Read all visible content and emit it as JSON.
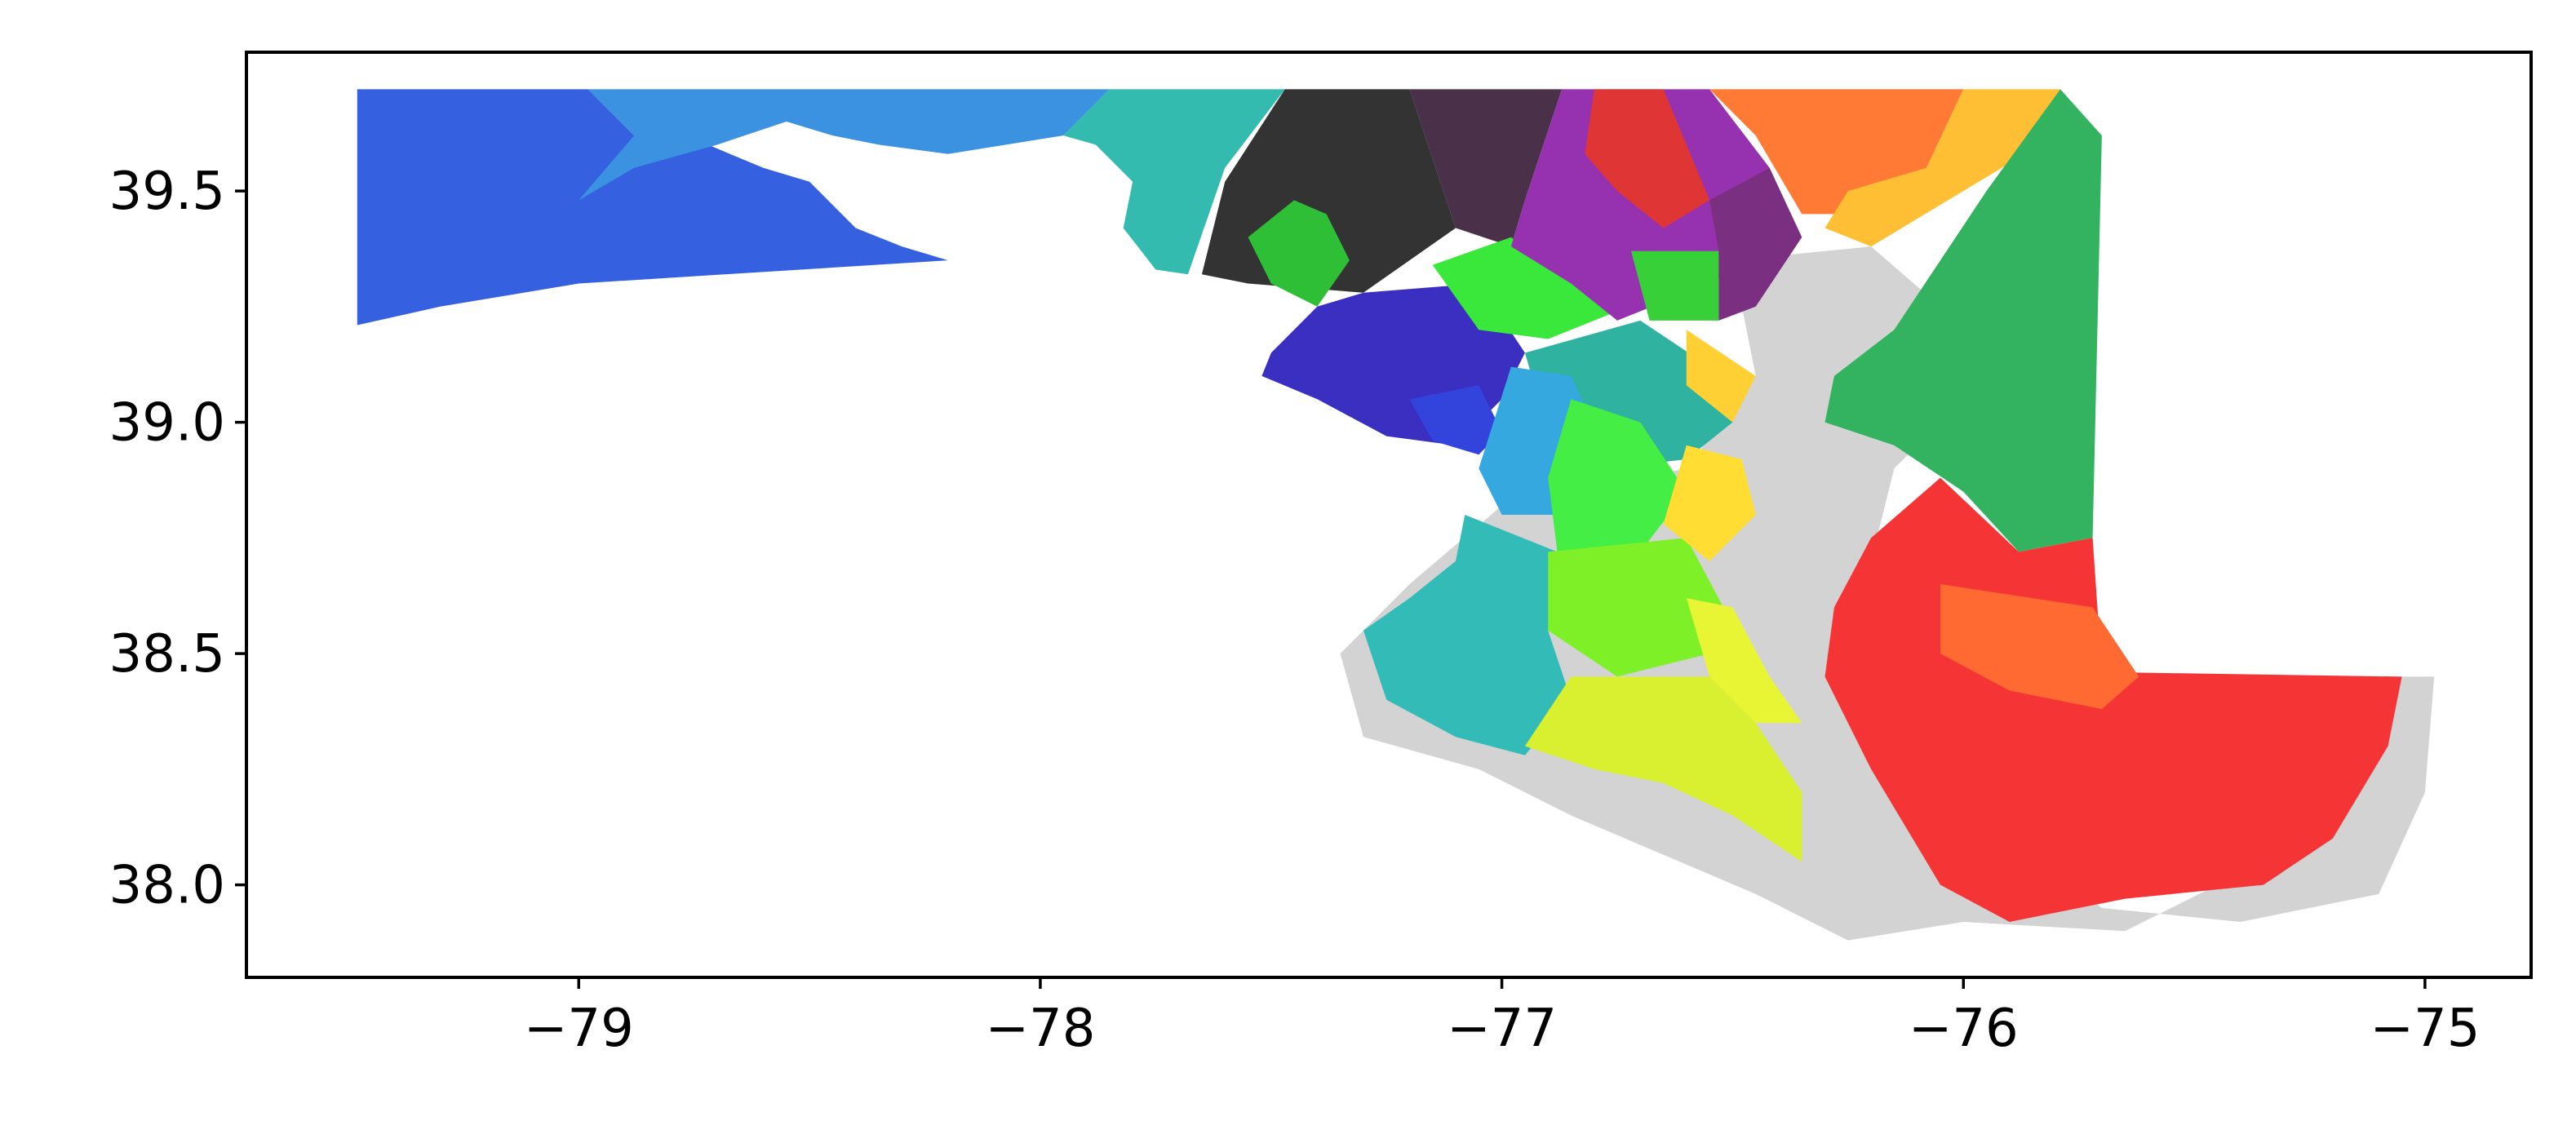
{
  "chart_data": {
    "type": "map",
    "title": "",
    "xlabel": "",
    "ylabel": "",
    "xlim": [
      -79.72,
      -74.77
    ],
    "ylim": [
      37.8,
      39.8
    ],
    "x_ticks": [
      {
        "value": -79,
        "label": "−79"
      },
      {
        "value": -78,
        "label": "−78"
      },
      {
        "value": -77,
        "label": "−77"
      },
      {
        "value": -76,
        "label": "−76"
      },
      {
        "value": -75,
        "label": "−75"
      }
    ],
    "y_ticks": [
      {
        "value": 38.0,
        "label": "38.0"
      },
      {
        "value": 38.5,
        "label": "38.5"
      },
      {
        "value": 39.0,
        "label": "39.0"
      },
      {
        "value": 39.5,
        "label": "39.5"
      }
    ],
    "grid": false,
    "legend": "none",
    "water_color": "#d3d3d3",
    "regions": [
      {
        "id": "west-garrett",
        "color": "#3560e0",
        "coords": [
          [
            -79.48,
            39.72
          ],
          [
            -78.98,
            39.72
          ],
          [
            -78.88,
            39.62
          ],
          [
            -78.72,
            39.6
          ],
          [
            -78.6,
            39.55
          ],
          [
            -78.5,
            39.52
          ],
          [
            -78.4,
            39.42
          ],
          [
            -78.3,
            39.38
          ],
          [
            -78.2,
            39.35
          ],
          [
            -79.0,
            39.3
          ],
          [
            -79.3,
            39.25
          ],
          [
            -79.48,
            39.21
          ]
        ]
      },
      {
        "id": "west-allegany",
        "color": "#3a92e0",
        "coords": [
          [
            -78.98,
            39.72
          ],
          [
            -77.85,
            39.72
          ],
          [
            -77.95,
            39.62
          ],
          [
            -78.2,
            39.58
          ],
          [
            -78.35,
            39.6
          ],
          [
            -78.45,
            39.62
          ],
          [
            -78.55,
            39.65
          ],
          [
            -78.7,
            39.6
          ],
          [
            -78.88,
            39.55
          ],
          [
            -79.0,
            39.48
          ],
          [
            -78.88,
            39.62
          ]
        ]
      },
      {
        "id": "washington",
        "color": "#33bbb0",
        "coords": [
          [
            -77.85,
            39.72
          ],
          [
            -77.47,
            39.72
          ],
          [
            -77.6,
            39.55
          ],
          [
            -77.68,
            39.32
          ],
          [
            -77.75,
            39.33
          ],
          [
            -77.82,
            39.42
          ],
          [
            -77.8,
            39.52
          ],
          [
            -77.88,
            39.6
          ],
          [
            -77.95,
            39.62
          ]
        ]
      },
      {
        "id": "frederick-north",
        "color": "#333333",
        "coords": [
          [
            -77.47,
            39.72
          ],
          [
            -77.2,
            39.72
          ],
          [
            -77.1,
            39.42
          ],
          [
            -77.3,
            39.28
          ],
          [
            -77.55,
            39.3
          ],
          [
            -77.65,
            39.32
          ],
          [
            -77.6,
            39.52
          ]
        ]
      },
      {
        "id": "frederick-city",
        "color": "#2fbf36",
        "coords": [
          [
            -77.45,
            39.48
          ],
          [
            -77.38,
            39.45
          ],
          [
            -77.33,
            39.35
          ],
          [
            -77.4,
            39.25
          ],
          [
            -77.5,
            39.3
          ],
          [
            -77.55,
            39.4
          ]
        ]
      },
      {
        "id": "carroll",
        "color": "#4a3048",
        "coords": [
          [
            -77.2,
            39.72
          ],
          [
            -76.87,
            39.72
          ],
          [
            -76.95,
            39.48
          ],
          [
            -76.98,
            39.38
          ],
          [
            -77.1,
            39.42
          ]
        ]
      },
      {
        "id": "montgomery-north",
        "color": "#3a2fc0",
        "coords": [
          [
            -77.3,
            39.28
          ],
          [
            -77.05,
            39.3
          ],
          [
            -76.95,
            39.15
          ],
          [
            -77.0,
            39.05
          ],
          [
            -77.1,
            38.95
          ],
          [
            -77.25,
            38.97
          ],
          [
            -77.4,
            39.05
          ],
          [
            -77.52,
            39.1
          ],
          [
            -77.5,
            39.15
          ],
          [
            -77.4,
            39.25
          ]
        ]
      },
      {
        "id": "montgomery-south",
        "color": "#3344dd",
        "coords": [
          [
            -77.2,
            39.05
          ],
          [
            -77.05,
            39.08
          ],
          [
            -77.0,
            38.98
          ],
          [
            -77.05,
            38.93
          ],
          [
            -77.15,
            38.96
          ]
        ]
      },
      {
        "id": "howard",
        "color": "#39e83a",
        "coords": [
          [
            -77.15,
            39.34
          ],
          [
            -76.98,
            39.4
          ],
          [
            -76.85,
            39.3
          ],
          [
            -76.75,
            39.24
          ],
          [
            -76.9,
            39.18
          ],
          [
            -77.05,
            39.2
          ]
        ]
      },
      {
        "id": "balt-county-west",
        "color": "#9632b0",
        "coords": [
          [
            -76.87,
            39.72
          ],
          [
            -76.55,
            39.72
          ],
          [
            -76.42,
            39.55
          ],
          [
            -76.4,
            39.38
          ],
          [
            -76.55,
            39.3
          ],
          [
            -76.75,
            39.22
          ],
          [
            -76.85,
            39.3
          ],
          [
            -76.98,
            39.38
          ],
          [
            -76.95,
            39.48
          ]
        ]
      },
      {
        "id": "balt-north",
        "color": "#e03535",
        "coords": [
          [
            -76.8,
            39.72
          ],
          [
            -76.65,
            39.72
          ],
          [
            -76.55,
            39.48
          ],
          [
            -76.65,
            39.42
          ],
          [
            -76.75,
            39.5
          ],
          [
            -76.82,
            39.58
          ]
        ]
      },
      {
        "id": "balt-city",
        "color": "#37d039",
        "coords": [
          [
            -76.72,
            39.37
          ],
          [
            -76.53,
            39.37
          ],
          [
            -76.53,
            39.22
          ],
          [
            -76.68,
            39.22
          ]
        ]
      },
      {
        "id": "balt-east",
        "color": "#7a2f80",
        "coords": [
          [
            -76.55,
            39.48
          ],
          [
            -76.42,
            39.55
          ],
          [
            -76.35,
            39.4
          ],
          [
            -76.45,
            39.25
          ],
          [
            -76.53,
            39.22
          ],
          [
            -76.53,
            39.37
          ]
        ]
      },
      {
        "id": "harford",
        "color": "#ff7a35",
        "coords": [
          [
            -76.55,
            39.72
          ],
          [
            -76.0,
            39.72
          ],
          [
            -76.08,
            39.55
          ],
          [
            -76.2,
            39.45
          ],
          [
            -76.35,
            39.45
          ],
          [
            -76.45,
            39.62
          ]
        ]
      },
      {
        "id": "cecil-yellow",
        "color": "#ffbf35",
        "coords": [
          [
            -76.0,
            39.72
          ],
          [
            -75.79,
            39.72
          ],
          [
            -75.8,
            39.62
          ],
          [
            -76.0,
            39.5
          ],
          [
            -76.2,
            39.38
          ],
          [
            -76.3,
            39.42
          ],
          [
            -76.25,
            39.5
          ],
          [
            -76.08,
            39.55
          ]
        ]
      },
      {
        "id": "anne-arundel-north",
        "color": "#2fb3a0",
        "coords": [
          [
            -76.95,
            39.15
          ],
          [
            -76.7,
            39.22
          ],
          [
            -76.55,
            39.12
          ],
          [
            -76.5,
            39.0
          ],
          [
            -76.6,
            38.92
          ],
          [
            -76.78,
            38.9
          ],
          [
            -76.9,
            38.98
          ]
        ]
      },
      {
        "id": "anne-arundel-yellow",
        "color": "#ffd033",
        "coords": [
          [
            -76.6,
            39.2
          ],
          [
            -76.45,
            39.1
          ],
          [
            -76.5,
            39.0
          ],
          [
            -76.6,
            39.08
          ]
        ]
      },
      {
        "id": "prince-georges",
        "color": "#35a8e0",
        "coords": [
          [
            -76.98,
            39.12
          ],
          [
            -76.85,
            39.1
          ],
          [
            -76.78,
            38.95
          ],
          [
            -76.85,
            38.8
          ],
          [
            -77.0,
            38.8
          ],
          [
            -77.05,
            38.9
          ]
        ]
      },
      {
        "id": "pg-south",
        "color": "#44ee44",
        "coords": [
          [
            -76.85,
            39.05
          ],
          [
            -76.7,
            39.0
          ],
          [
            -76.6,
            38.85
          ],
          [
            -76.7,
            38.72
          ],
          [
            -76.88,
            38.72
          ],
          [
            -76.9,
            38.88
          ]
        ]
      },
      {
        "id": "charles",
        "color": "#33bbb8",
        "coords": [
          [
            -77.08,
            38.8
          ],
          [
            -76.88,
            38.72
          ],
          [
            -76.9,
            38.55
          ],
          [
            -76.85,
            38.4
          ],
          [
            -76.95,
            38.28
          ],
          [
            -77.1,
            38.32
          ],
          [
            -77.25,
            38.4
          ],
          [
            -77.3,
            38.55
          ],
          [
            -77.2,
            38.62
          ],
          [
            -77.1,
            38.7
          ]
        ]
      },
      {
        "id": "calvert-green",
        "color": "#7df028",
        "coords": [
          [
            -76.9,
            38.72
          ],
          [
            -76.6,
            38.75
          ],
          [
            -76.52,
            38.6
          ],
          [
            -76.55,
            38.5
          ],
          [
            -76.75,
            38.45
          ],
          [
            -76.9,
            38.55
          ]
        ]
      },
      {
        "id": "anne-arundel-south",
        "color": "#ffdd33",
        "coords": [
          [
            -76.6,
            38.95
          ],
          [
            -76.48,
            38.92
          ],
          [
            -76.45,
            38.8
          ],
          [
            -76.55,
            38.7
          ],
          [
            -76.65,
            38.78
          ]
        ]
      },
      {
        "id": "st-marys",
        "color": "#d8f030",
        "coords": [
          [
            -76.85,
            38.45
          ],
          [
            -76.55,
            38.45
          ],
          [
            -76.45,
            38.35
          ],
          [
            -76.35,
            38.2
          ],
          [
            -76.35,
            38.05
          ],
          [
            -76.5,
            38.15
          ],
          [
            -76.65,
            38.22
          ],
          [
            -76.8,
            38.25
          ],
          [
            -76.95,
            38.3
          ]
        ]
      },
      {
        "id": "calvert-south",
        "color": "#e8f535",
        "coords": [
          [
            -76.6,
            38.62
          ],
          [
            -76.5,
            38.6
          ],
          [
            -76.42,
            38.45
          ],
          [
            -76.35,
            38.35
          ],
          [
            -76.45,
            38.35
          ],
          [
            -76.55,
            38.45
          ]
        ]
      },
      {
        "id": "eastern-green",
        "color": "#33b35f",
        "coords": [
          [
            -75.79,
            39.72
          ],
          [
            -75.7,
            39.62
          ],
          [
            -75.72,
            38.75
          ],
          [
            -75.88,
            38.72
          ],
          [
            -76.0,
            38.85
          ],
          [
            -76.15,
            38.95
          ],
          [
            -76.3,
            39.0
          ],
          [
            -76.28,
            39.1
          ],
          [
            -76.15,
            39.2
          ],
          [
            -76.05,
            39.35
          ],
          [
            -75.95,
            39.5
          ]
        ]
      },
      {
        "id": "eastern-red",
        "color": "#f53535",
        "coords": [
          [
            -75.72,
            38.75
          ],
          [
            -75.7,
            38.46
          ],
          [
            -75.05,
            38.45
          ],
          [
            -75.08,
            38.3
          ],
          [
            -75.2,
            38.1
          ],
          [
            -75.35,
            38.0
          ],
          [
            -75.65,
            37.97
          ],
          [
            -75.9,
            37.92
          ],
          [
            -76.05,
            38.0
          ],
          [
            -76.2,
            38.25
          ],
          [
            -76.3,
            38.45
          ],
          [
            -76.28,
            38.6
          ],
          [
            -76.2,
            38.75
          ],
          [
            -76.05,
            38.88
          ],
          [
            -75.88,
            38.72
          ]
        ]
      },
      {
        "id": "eastern-orange",
        "color": "#ff6a33",
        "coords": [
          [
            -76.05,
            38.65
          ],
          [
            -75.72,
            38.6
          ],
          [
            -75.62,
            38.45
          ],
          [
            -75.7,
            38.38
          ],
          [
            -75.9,
            38.42
          ],
          [
            -76.05,
            38.5
          ]
        ]
      }
    ]
  }
}
